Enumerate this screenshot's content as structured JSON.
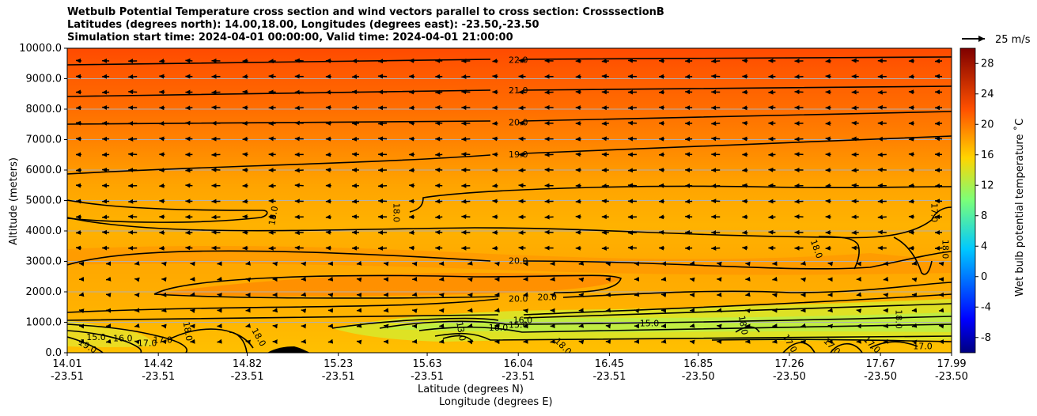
{
  "title": {
    "line1": "Wetbulb Potential Temperature cross section and wind vectors parallel to cross section: CrosssectionB",
    "line2": "Latitudes (degrees north): 14.00,18.00, Longitudes (degrees east): -23.50,-23.50",
    "line3": "Simulation start time: 2024-04-01 00:00:00, Valid time: 2024-04-01 21:00:00"
  },
  "chart_data": {
    "type": "heatmap",
    "subtype": "vertical cross section with contours and wind vectors",
    "xlabel": "Latitude (degrees N)",
    "xlabel2": "Longitude (degrees E)",
    "ylabel": "Altitude (meters)",
    "ylim": [
      0,
      10000
    ],
    "xlim": [
      14.01,
      17.99
    ],
    "y_ticks": [
      "0.0",
      "1000.0",
      "2000.0",
      "3000.0",
      "4000.0",
      "5000.0",
      "6000.0",
      "7000.0",
      "8000.0",
      "9000.0",
      "10000.0"
    ],
    "x_ticks": [
      {
        "lat": "14.01",
        "lon": "-23.51"
      },
      {
        "lat": "14.42",
        "lon": "-23.51"
      },
      {
        "lat": "14.82",
        "lon": "-23.51"
      },
      {
        "lat": "15.23",
        "lon": "-23.51"
      },
      {
        "lat": "15.63",
        "lon": "-23.51"
      },
      {
        "lat": "16.04",
        "lon": "-23.51"
      },
      {
        "lat": "16.45",
        "lon": "-23.51"
      },
      {
        "lat": "16.85",
        "lon": "-23.50"
      },
      {
        "lat": "17.26",
        "lon": "-23.50"
      },
      {
        "lat": "17.67",
        "lon": "-23.50"
      },
      {
        "lat": "17.99",
        "lon": "-23.50"
      }
    ],
    "colorbar": {
      "label": "Wet bulb potential temperature ˚C",
      "range": [
        -10,
        30
      ],
      "ticks": [
        "-8",
        "-4",
        "0",
        "4",
        "8",
        "12",
        "16",
        "20",
        "24",
        "28"
      ],
      "colormap": "jet"
    },
    "reference_vector": "25 m/s",
    "grid": true,
    "contour_levels": [
      {
        "level": 22.0,
        "altitude": 9600
      },
      {
        "level": 21.0,
        "altitude": 8500
      },
      {
        "level": 20.0,
        "altitude": 7500
      },
      {
        "level": 19.0,
        "altitude": 6300
      },
      {
        "level": 18.0,
        "altitude": 4500
      },
      {
        "level": 20.0,
        "altitude": 3000
      },
      {
        "level": 20.0,
        "altitude": 1800
      },
      {
        "level": 17.0,
        "altitude": 1200
      },
      {
        "level": 16.0,
        "altitude": 900
      },
      {
        "level": 15.0,
        "altitude": 900
      }
    ],
    "contour_labels": [
      {
        "text": "22.0",
        "lat": 16.04,
        "alt": 9600,
        "rot": 0
      },
      {
        "text": "21.0",
        "lat": 16.04,
        "alt": 8600,
        "rot": 0
      },
      {
        "text": "20.0",
        "lat": 16.04,
        "alt": 7550,
        "rot": 0
      },
      {
        "text": "19.0",
        "lat": 16.04,
        "alt": 6500,
        "rot": 0
      },
      {
        "text": "18.0",
        "lat": 14.94,
        "alt": 4500,
        "rot": -80
      },
      {
        "text": "18.0",
        "lat": 15.49,
        "alt": 4600,
        "rot": 90
      },
      {
        "text": "17.0",
        "lat": 17.91,
        "alt": 4600,
        "rot": 90
      },
      {
        "text": "18.0",
        "lat": 17.38,
        "alt": 3400,
        "rot": 70
      },
      {
        "text": "18.0",
        "lat": 17.96,
        "alt": 3400,
        "rot": 90
      },
      {
        "text": "20.0",
        "lat": 16.04,
        "alt": 3000,
        "rot": 0
      },
      {
        "text": "20.0",
        "lat": 16.04,
        "alt": 1750,
        "rot": 0
      },
      {
        "text": "20.0",
        "lat": 16.17,
        "alt": 1800,
        "rot": 0
      },
      {
        "text": "16.0",
        "lat": 16.06,
        "alt": 1050,
        "rot": 0
      },
      {
        "text": "15.0",
        "lat": 16.04,
        "alt": 900,
        "rot": 0
      },
      {
        "text": "16.0",
        "lat": 15.95,
        "alt": 800,
        "rot": 0
      },
      {
        "text": "15.0",
        "lat": 16.63,
        "alt": 950,
        "rot": 0
      },
      {
        "text": "13.0",
        "lat": 15.78,
        "alt": 700,
        "rot": 80
      },
      {
        "text": "18.0",
        "lat": 14.55,
        "alt": 700,
        "rot": 80
      },
      {
        "text": "18.0",
        "lat": 14.87,
        "alt": 500,
        "rot": 60
      },
      {
        "text": "17.0",
        "lat": 14.44,
        "alt": 400,
        "rot": 0
      },
      {
        "text": "17.0",
        "lat": 14.37,
        "alt": 300,
        "rot": 0
      },
      {
        "text": "15.0",
        "lat": 14.14,
        "alt": 500,
        "rot": 0
      },
      {
        "text": "16.0",
        "lat": 14.26,
        "alt": 450,
        "rot": 0
      },
      {
        "text": "19.0",
        "lat": 14.1,
        "alt": 200,
        "rot": 30
      },
      {
        "text": "18.0",
        "lat": 16.24,
        "alt": 200,
        "rot": 45
      },
      {
        "text": "18.0",
        "lat": 17.05,
        "alt": 900,
        "rot": 80
      },
      {
        "text": "17.0",
        "lat": 17.26,
        "alt": 300,
        "rot": 60
      },
      {
        "text": "17.0",
        "lat": 17.45,
        "alt": 200,
        "rot": 45
      },
      {
        "text": "17.0",
        "lat": 17.63,
        "alt": 250,
        "rot": 45
      },
      {
        "text": "17.0",
        "lat": 17.86,
        "alt": 200,
        "rot": 0
      },
      {
        "text": "18.0",
        "lat": 17.75,
        "alt": 1100,
        "rot": 90
      }
    ]
  },
  "colors": {
    "top_band": "#ff6000",
    "mid_band": "#ff9a00",
    "low_band": "#ffb800",
    "cool_pocket": "#c8f03a",
    "terrain": "#000000",
    "contour": "#000000",
    "grid": "#b0b0b0"
  }
}
